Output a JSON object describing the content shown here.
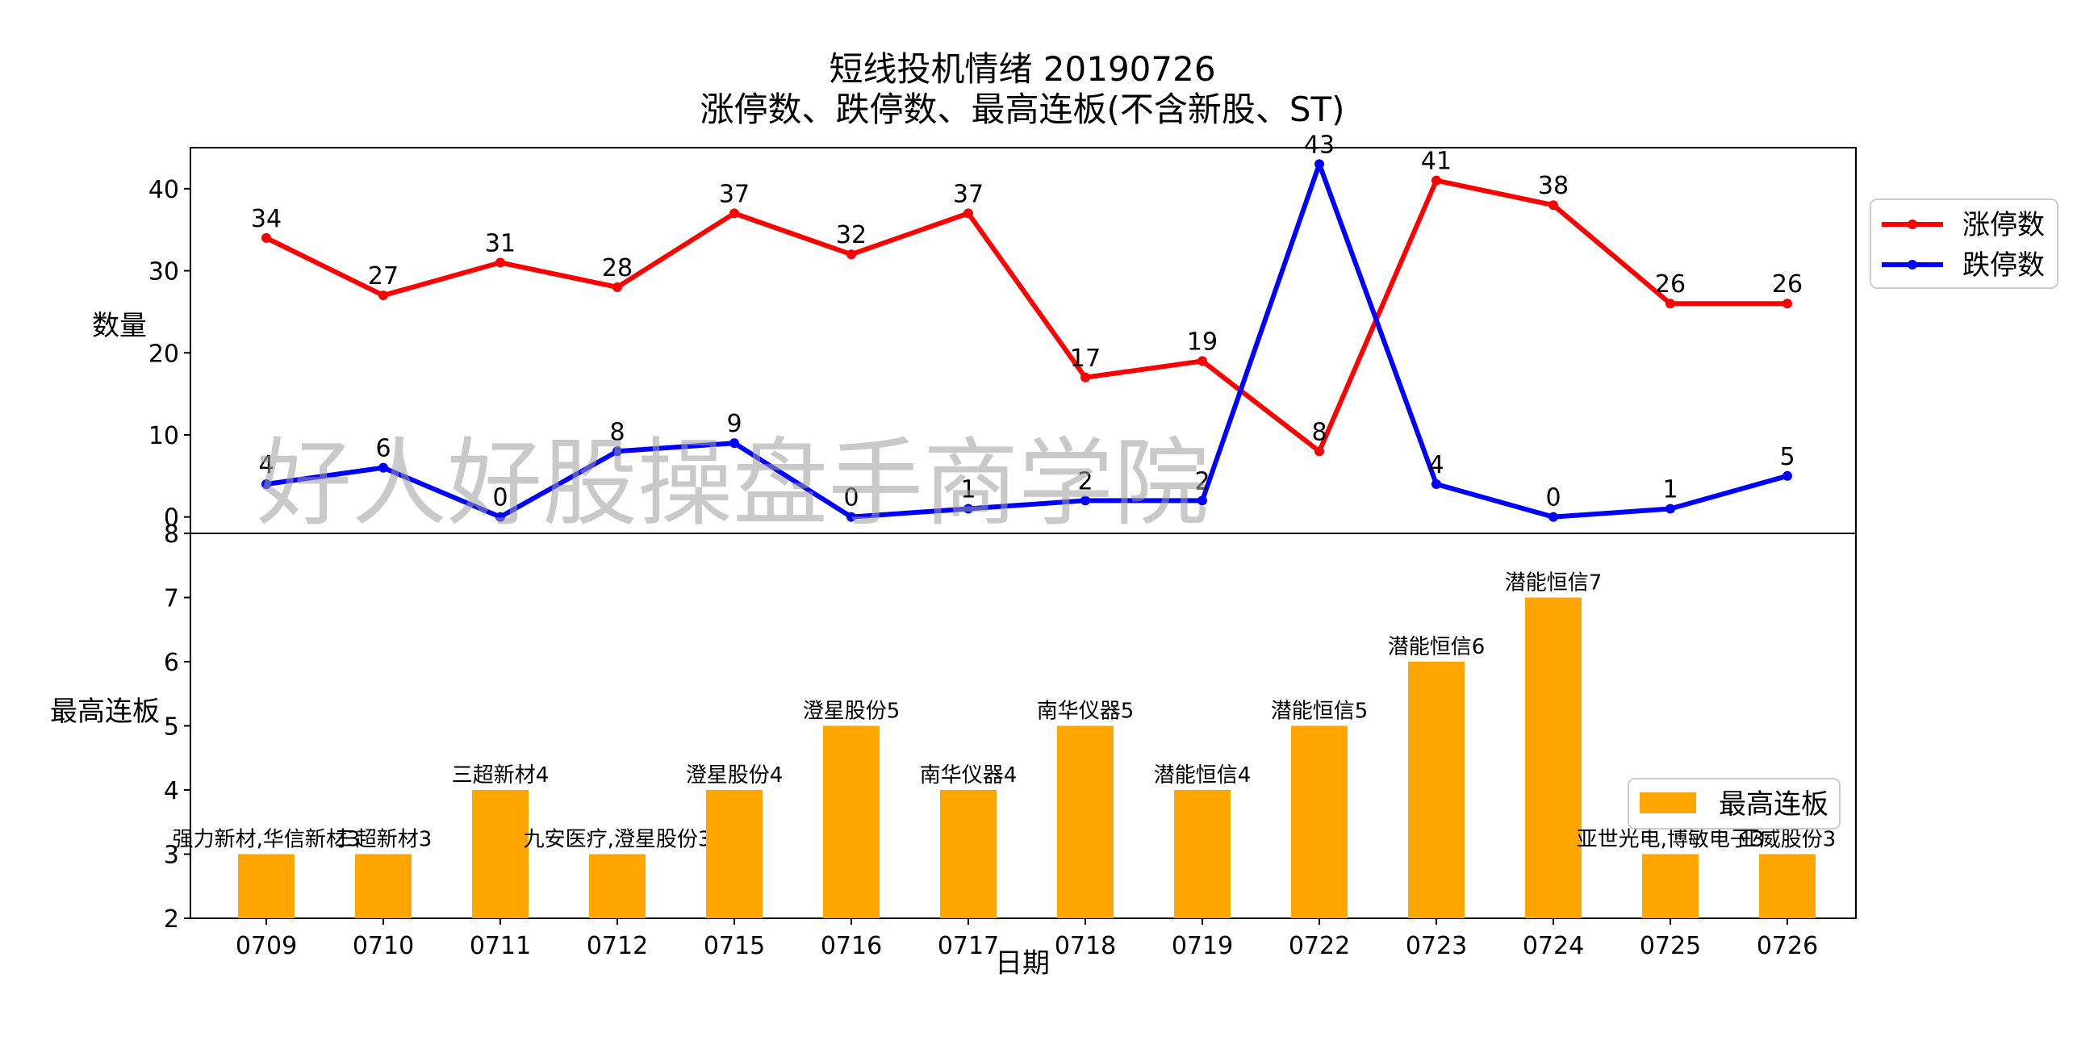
{
  "watermark": "好人好股操盘手商学院",
  "chart_data": [
    {
      "type": "line",
      "title": "短线投机情绪 20190726",
      "subtitle": "涨停数、跌停数、最高连板(不含新股、ST)",
      "xlabel": "",
      "ylabel": "数量",
      "ylim": [
        -2,
        45
      ],
      "yticks": [
        0,
        10,
        20,
        30,
        40
      ],
      "categories": [
        "0709",
        "0710",
        "0711",
        "0712",
        "0715",
        "0716",
        "0717",
        "0718",
        "0719",
        "0722",
        "0723",
        "0724",
        "0725",
        "0726"
      ],
      "series": [
        {
          "name": "涨停数",
          "color": "#ff0000",
          "values": [
            34,
            27,
            31,
            28,
            37,
            32,
            37,
            17,
            19,
            8,
            41,
            38,
            26,
            26
          ]
        },
        {
          "name": "跌停数",
          "color": "#0000ff",
          "values": [
            4,
            6,
            0,
            8,
            9,
            0,
            1,
            2,
            2,
            43,
            4,
            0,
            1,
            5
          ]
        }
      ],
      "legend": "right-top",
      "grid": false
    },
    {
      "type": "bar",
      "xlabel": "日期",
      "ylabel": "最高连板",
      "ylim": [
        2,
        8
      ],
      "yticks": [
        2,
        3,
        4,
        5,
        6,
        7,
        8
      ],
      "categories": [
        "0709",
        "0710",
        "0711",
        "0712",
        "0715",
        "0716",
        "0717",
        "0718",
        "0719",
        "0722",
        "0723",
        "0724",
        "0725",
        "0726"
      ],
      "series": [
        {
          "name": "最高连板",
          "color": "#ffa500",
          "values": [
            3,
            3,
            4,
            3,
            4,
            5,
            4,
            5,
            4,
            5,
            6,
            7,
            3,
            3
          ]
        }
      ],
      "labels": [
        "强力新材,华信新材3",
        "三超新材3",
        "三超新材4",
        "九安医疗,澄星股份3",
        "澄星股份4",
        "澄星股份5",
        "南华仪器4",
        "南华仪器5",
        "潜能恒信4",
        "潜能恒信5",
        "潜能恒信6",
        "潜能恒信7",
        "亚世光电,博敏电子3",
        "亚威股份3"
      ],
      "legend": "right",
      "grid": false
    }
  ]
}
